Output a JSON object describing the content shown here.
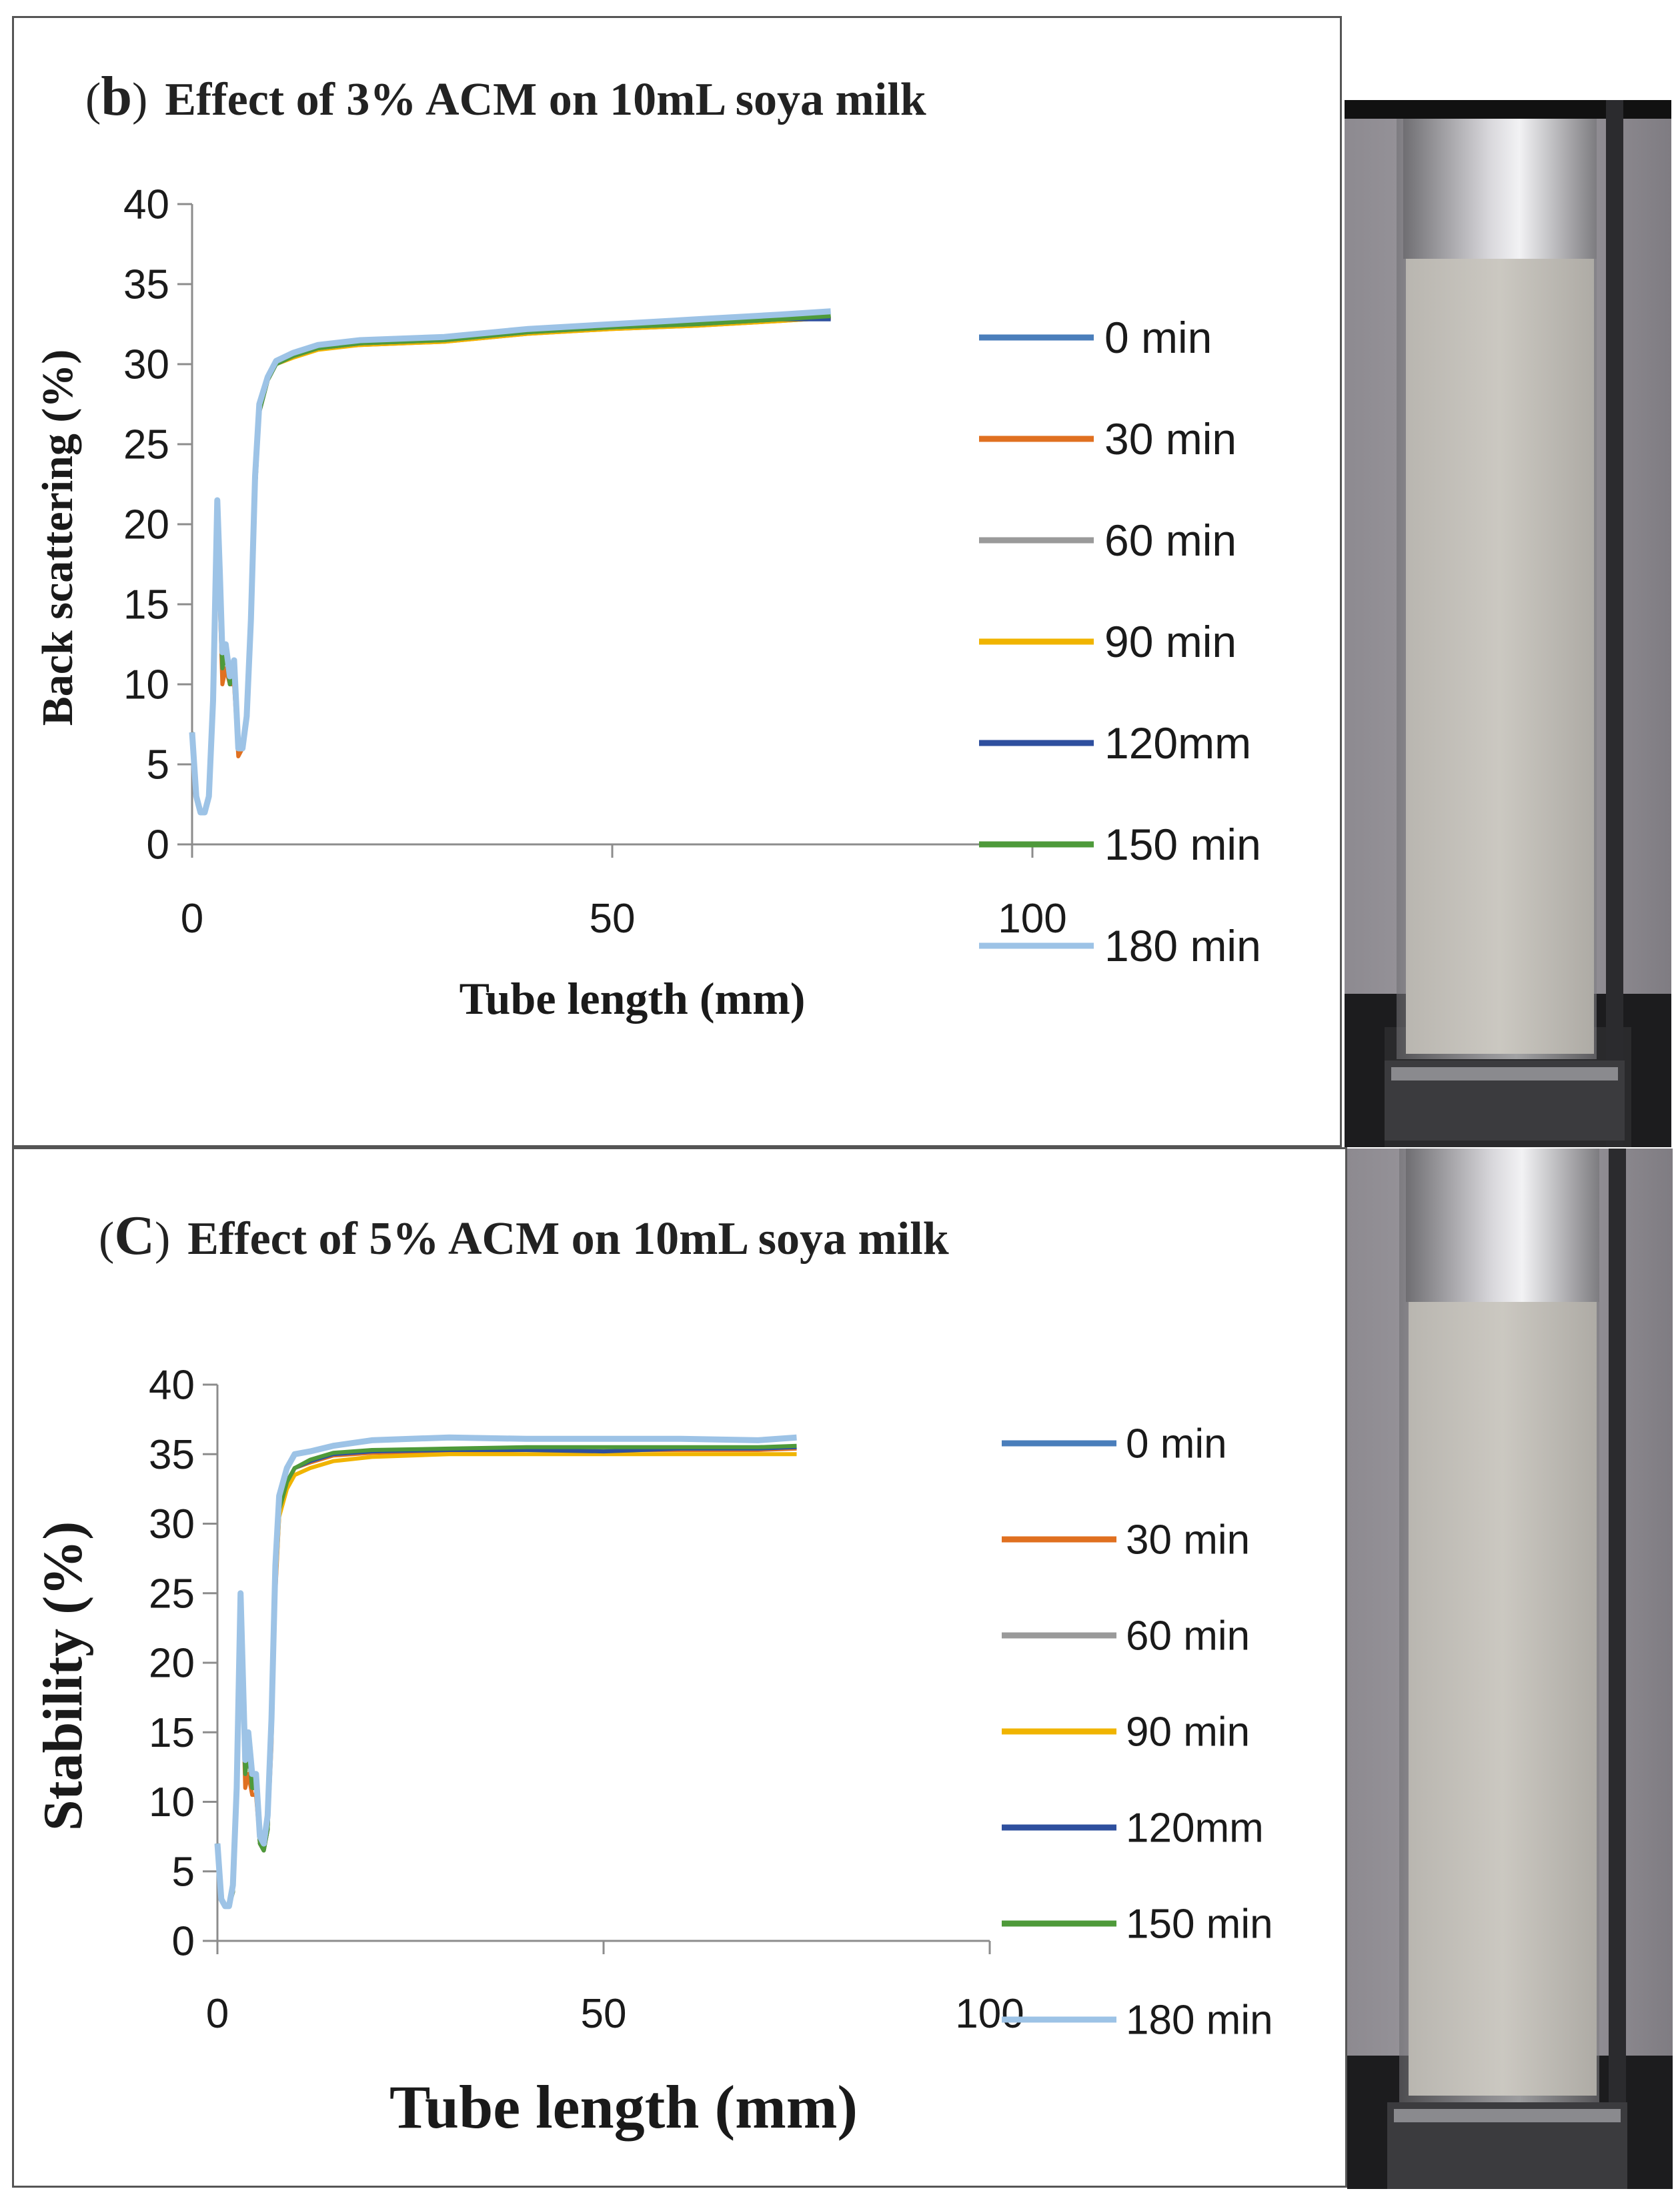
{
  "chart_data": [
    {
      "type": "line",
      "panel": "b",
      "title": "Effect of  3% ACM on 10mL soya milk",
      "xlabel": "Tube length (mm)",
      "ylabel": "Back scattering (%)",
      "xlim": [
        0,
        100
      ],
      "ylim": [
        0,
        40
      ],
      "xticks": [
        "0",
        "50",
        "100"
      ],
      "yticks": [
        "0",
        "5",
        "10",
        "15",
        "20",
        "25",
        "30",
        "35",
        "40"
      ],
      "legend_position": "right",
      "x": [
        0,
        0.5,
        1,
        1.5,
        2,
        2.5,
        3,
        3.3,
        3.6,
        4,
        4.5,
        5,
        5.5,
        6,
        6.5,
        7,
        7.5,
        8,
        9,
        10,
        12,
        15,
        20,
        30,
        40,
        50,
        60,
        70,
        76
      ],
      "series": [
        {
          "name": "0 min",
          "color": "#4A7EBB",
          "values": [
            7,
            3,
            2,
            2,
            3,
            8,
            20,
            16,
            11,
            12,
            10,
            11,
            6,
            6,
            8,
            13,
            22,
            27,
            29,
            30,
            30.5,
            31,
            31.3,
            31.5,
            32,
            32.3,
            32.5,
            32.8,
            33
          ]
        },
        {
          "name": "30 min",
          "color": "#E07020",
          "values": [
            7,
            3,
            2,
            2,
            3,
            8,
            20,
            15,
            10,
            11,
            10,
            10,
            5.5,
            6,
            8,
            13,
            22,
            27,
            29,
            30,
            30.5,
            31,
            31.2,
            31.4,
            31.9,
            32.2,
            32.4,
            32.7,
            32.9
          ]
        },
        {
          "name": "60 min",
          "color": "#9A9A9A",
          "values": [
            7,
            3,
            2,
            2,
            3,
            8,
            20,
            16,
            11,
            12,
            10,
            11,
            6,
            6,
            8,
            13,
            22,
            27,
            29,
            30,
            30.5,
            31,
            31.3,
            31.5,
            32,
            32.3,
            32.5,
            32.8,
            33
          ]
        },
        {
          "name": "90 min",
          "color": "#F0B400",
          "values": [
            7,
            3,
            2,
            2,
            3,
            8,
            20,
            16,
            11,
            12,
            10,
            11,
            6,
            6,
            8,
            13,
            22,
            27,
            29,
            30,
            30.4,
            30.9,
            31.2,
            31.4,
            31.9,
            32.2,
            32.4,
            32.7,
            32.9
          ]
        },
        {
          "name": "120mm",
          "color": "#2E4F9E",
          "values": [
            7,
            3,
            2,
            2,
            3,
            8,
            20,
            16,
            11,
            12,
            10,
            11,
            6,
            6,
            8,
            13,
            22,
            27,
            29,
            30,
            30.5,
            31,
            31.3,
            31.5,
            32,
            32.3,
            32.5,
            32.8,
            32.8
          ]
        },
        {
          "name": "150 min",
          "color": "#4E9A3A",
          "values": [
            7,
            3,
            2,
            2,
            3,
            8,
            20,
            16,
            11,
            12,
            10,
            11,
            6,
            6,
            8,
            13,
            22,
            27,
            29,
            30,
            30.5,
            31,
            31.3,
            31.5,
            32,
            32.3,
            32.5,
            32.8,
            33
          ]
        },
        {
          "name": "180 min",
          "color": "#9DC3E6",
          "values": [
            7,
            3,
            2,
            2,
            3,
            9,
            21.5,
            17,
            12,
            12.5,
            10.5,
            11.5,
            6,
            6,
            8,
            14,
            23,
            27.5,
            29.2,
            30.2,
            30.7,
            31.2,
            31.5,
            31.7,
            32.2,
            32.5,
            32.8,
            33.1,
            33.3
          ]
        }
      ]
    },
    {
      "type": "line",
      "panel": "C",
      "title": "Effect of 5% ACM on 10mL soya milk",
      "xlabel": "Tube length  (mm)",
      "ylabel": "Stability  (%)",
      "xlim": [
        0,
        100
      ],
      "ylim": [
        0,
        40
      ],
      "xticks": [
        "0",
        "50",
        "100"
      ],
      "yticks": [
        "0",
        "5",
        "10",
        "15",
        "20",
        "25",
        "30",
        "35",
        "40"
      ],
      "legend_position": "right",
      "x": [
        0,
        0.5,
        1,
        1.5,
        2,
        2.5,
        3,
        3.3,
        3.6,
        4,
        4.5,
        5,
        5.5,
        6,
        6.5,
        7,
        7.5,
        8,
        9,
        10,
        12,
        15,
        20,
        30,
        40,
        50,
        60,
        70,
        75
      ],
      "series": [
        {
          "name": "0 min",
          "color": "#4A7EBB",
          "values": [
            7,
            3,
            2.5,
            2.5,
            3.5,
            10,
            23,
            18,
            12,
            14,
            11,
            11,
            7,
            6.5,
            8,
            15,
            26,
            31,
            33,
            34,
            34.5,
            35,
            35.2,
            35.3,
            35.4,
            35.4,
            35.4,
            35.4,
            35.5
          ]
        },
        {
          "name": "30 min",
          "color": "#E07020",
          "values": [
            7,
            3,
            2.5,
            2.5,
            3.5,
            10,
            22,
            17,
            11,
            12,
            10.5,
            10.5,
            7,
            6.5,
            8,
            14,
            25,
            30.5,
            32.8,
            34,
            34.4,
            34.9,
            35.1,
            35.2,
            35.3,
            35.3,
            35.3,
            35.3,
            35.4
          ]
        },
        {
          "name": "60 min",
          "color": "#9A9A9A",
          "values": [
            7,
            3,
            2.5,
            2.5,
            3.5,
            10,
            23,
            18,
            12,
            14,
            11,
            11,
            7,
            6.5,
            8,
            15,
            26,
            31,
            33,
            34,
            34.5,
            35,
            35.2,
            35.3,
            35.4,
            35.4,
            35.4,
            35.4,
            35.5
          ]
        },
        {
          "name": "90 min",
          "color": "#F0B400",
          "values": [
            7,
            3,
            2.5,
            2.5,
            3.5,
            10,
            23,
            18,
            12,
            14,
            11,
            11,
            7,
            6.5,
            8,
            15,
            25.5,
            30.5,
            32.5,
            33.5,
            34,
            34.5,
            34.8,
            35,
            35,
            35,
            35,
            35,
            35
          ]
        },
        {
          "name": "120mm",
          "color": "#2E4F9E",
          "values": [
            7,
            3,
            2.5,
            2.5,
            3.5,
            10,
            23,
            18,
            12,
            14,
            11,
            11,
            7,
            6.5,
            8,
            15,
            26,
            31,
            33,
            34,
            34.5,
            35,
            35.2,
            35.3,
            35.3,
            35.2,
            35.4,
            35.4,
            35.5
          ]
        },
        {
          "name": "150 min",
          "color": "#4E9A3A",
          "values": [
            7,
            3,
            2.5,
            2.5,
            3.5,
            10,
            23,
            18,
            12,
            14,
            11,
            11,
            7,
            6.5,
            8,
            15,
            26,
            31,
            33,
            34,
            34.6,
            35.1,
            35.3,
            35.4,
            35.5,
            35.5,
            35.5,
            35.5,
            35.6
          ]
        },
        {
          "name": "180 min",
          "color": "#9DC3E6",
          "values": [
            7,
            3,
            2.5,
            2.5,
            4,
            11,
            25,
            19,
            13,
            15,
            12,
            12,
            7.5,
            7,
            9,
            16,
            27,
            32,
            34,
            35,
            35.2,
            35.6,
            36,
            36.2,
            36.1,
            36.1,
            36.1,
            36,
            36.2
          ]
        }
      ]
    }
  ]
}
